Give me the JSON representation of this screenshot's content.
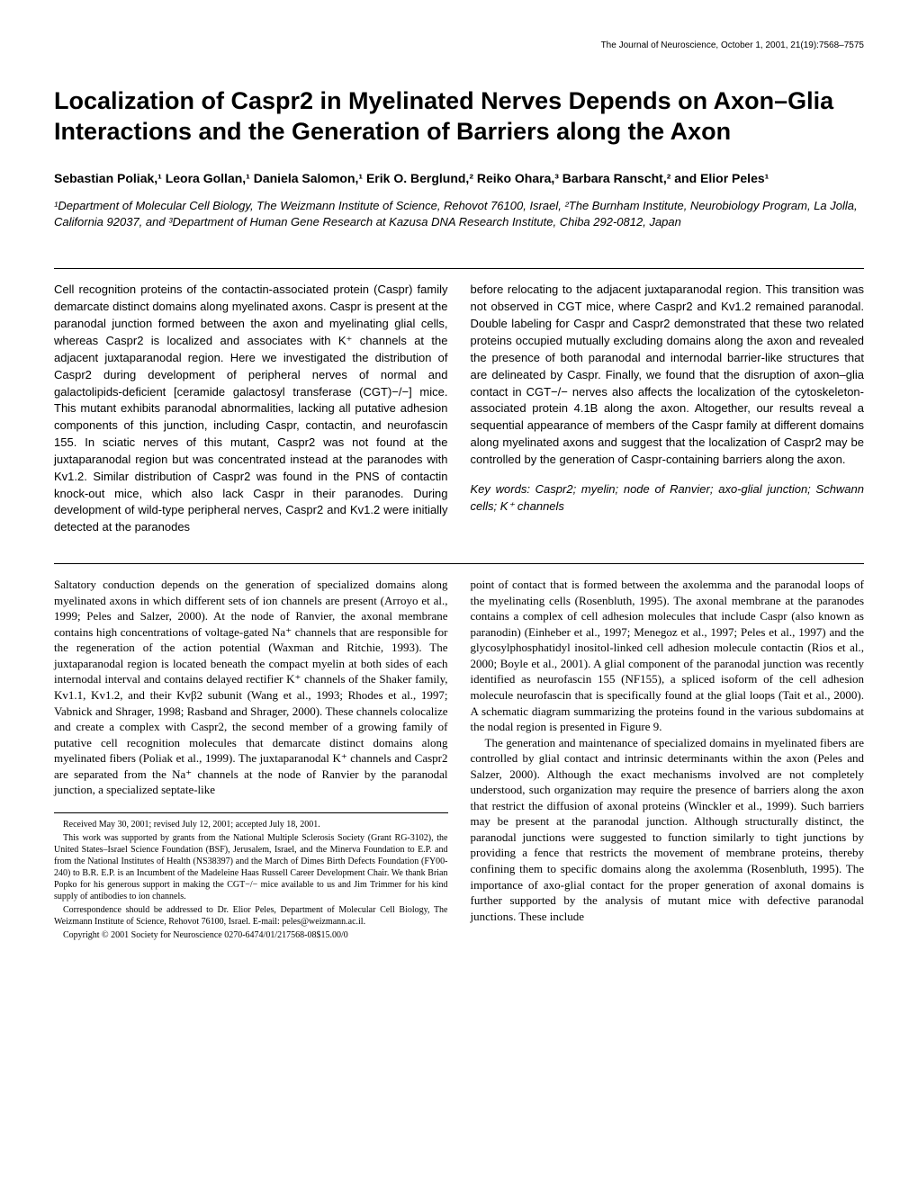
{
  "journal_header": "The Journal of Neuroscience, October 1, 2001, 21(19):7568–7575",
  "title": "Localization of Caspr2 in Myelinated Nerves Depends on Axon–Glia Interactions and the Generation of Barriers along the Axon",
  "authors_html": "Sebastian Poliak,¹ Leora Gollan,¹ Daniela Salomon,¹ Erik O. Berglund,² Reiko Ohara,³ Barbara Ranscht,² and Elior Peles¹",
  "affiliations_html": "¹Department of Molecular Cell Biology, The Weizmann Institute of Science, Rehovot 76100, Israel, ²The Burnham Institute, Neurobiology Program, La Jolla, California 92037, and ³Department of Human Gene Research at Kazusa DNA Research Institute, Chiba 292-0812, Japan",
  "abstract_left": "Cell recognition proteins of the contactin-associated protein (Caspr) family demarcate distinct domains along myelinated axons. Caspr is present at the paranodal junction formed between the axon and myelinating glial cells, whereas Caspr2 is localized and associates with K⁺ channels at the adjacent juxtaparanodal region. Here we investigated the distribution of Caspr2 during development of peripheral nerves of normal and galactolipids-deficient [ceramide galactosyl transferase (CGT)−/−] mice. This mutant exhibits paranodal abnormalities, lacking all putative adhesion components of this junction, including Caspr, contactin, and neurofascin 155. In sciatic nerves of this mutant, Caspr2 was not found at the juxtaparanodal region but was concentrated instead at the paranodes with Kv1.2. Similar distribution of Caspr2 was found in the PNS of contactin knock-out mice, which also lack Caspr in their paranodes. During development of wild-type peripheral nerves, Caspr2 and Kv1.2 were initially detected at the paranodes",
  "abstract_right": "before relocating to the adjacent juxtaparanodal region. This transition was not observed in CGT mice, where Caspr2 and Kv1.2 remained paranodal. Double labeling for Caspr and Caspr2 demonstrated that these two related proteins occupied mutually excluding domains along the axon and revealed the presence of both paranodal and internodal barrier-like structures that are delineated by Caspr. Finally, we found that the disruption of axon–glia contact in CGT−/− nerves also affects the localization of the cytoskeleton-associated protein 4.1B along the axon. Altogether, our results reveal a sequential appearance of members of the Caspr family at different domains along myelinated axons and suggest that the localization of Caspr2 may be controlled by the generation of Caspr-containing barriers along the axon.",
  "keywords": "Key words: Caspr2; myelin; node of Ranvier; axo-glial junction; Schwann cells; K⁺ channels",
  "body_left": "Saltatory conduction depends on the generation of specialized domains along myelinated axons in which different sets of ion channels are present (Arroyo et al., 1999; Peles and Salzer, 2000). At the node of Ranvier, the axonal membrane contains high concentrations of voltage-gated Na⁺ channels that are responsible for the regeneration of the action potential (Waxman and Ritchie, 1993). The juxtaparanodal region is located beneath the compact myelin at both sides of each internodal interval and contains delayed rectifier K⁺ channels of the Shaker family, Kv1.1, Kv1.2, and their Kvβ2 subunit (Wang et al., 1993; Rhodes et al., 1997; Vabnick and Shrager, 1998; Rasband and Shrager, 2000). These channels colocalize and create a complex with Caspr2, the second member of a growing family of putative cell recognition molecules that demarcate distinct domains along myelinated fibers (Poliak et al., 1999). The juxtaparanodal K⁺ channels and Caspr2 are separated from the Na⁺ channels at the node of Ranvier by the paranodal junction, a specialized septate-like",
  "body_right_p1": "point of contact that is formed between the axolemma and the paranodal loops of the myelinating cells (Rosenbluth, 1995). The axonal membrane at the paranodes contains a complex of cell adhesion molecules that include Caspr (also known as paranodin) (Einheber et al., 1997; Menegoz et al., 1997; Peles et al., 1997) and the glycosylphosphatidyl inositol-linked cell adhesion molecule contactin (Rios et al., 2000; Boyle et al., 2001). A glial component of the paranodal junction was recently identified as neurofascin 155 (NF155), a spliced isoform of the cell adhesion molecule neurofascin that is specifically found at the glial loops (Tait et al., 2000). A schematic diagram summarizing the proteins found in the various subdomains at the nodal region is presented in Figure 9.",
  "body_right_p2": "The generation and maintenance of specialized domains in myelinated fibers are controlled by glial contact and intrinsic determinants within the axon (Peles and Salzer, 2000). Although the exact mechanisms involved are not completely understood, such organization may require the presence of barriers along the axon that restrict the diffusion of axonal proteins (Winckler et al., 1999). Such barriers may be present at the paranodal junction. Although structurally distinct, the paranodal junctions were suggested to function similarly to tight junctions by providing a fence that restricts the movement of membrane proteins, thereby confining them to specific domains along the axolemma (Rosenbluth, 1995). The importance of axo-glial contact for the proper generation of axonal domains is further supported by the analysis of mutant mice with defective paranodal junctions. These include",
  "footnotes": {
    "received": "Received May 30, 2001; revised July 12, 2001; accepted July 18, 2001.",
    "funding": "This work was supported by grants from the National Multiple Sclerosis Society (Grant RG-3102), the United States–Israel Science Foundation (BSF), Jerusalem, Israel, and the Minerva Foundation to E.P. and from the National Institutes of Health (NS38397) and the March of Dimes Birth Defects Foundation (FY00-240) to B.R. E.P. is an Incumbent of the Madeleine Haas Russell Career Development Chair. We thank Brian Popko for his generous support in making the CGT−/− mice available to us and Jim Trimmer for his kind supply of antibodies to ion channels.",
    "correspondence": "Correspondence should be addressed to Dr. Elior Peles, Department of Molecular Cell Biology, The Weizmann Institute of Science, Rehovot 76100, Israel. E-mail: peles@weizmann.ac.il.",
    "copyright": "Copyright © 2001 Society for Neuroscience   0270-6474/01/217568-08$15.00/0"
  }
}
